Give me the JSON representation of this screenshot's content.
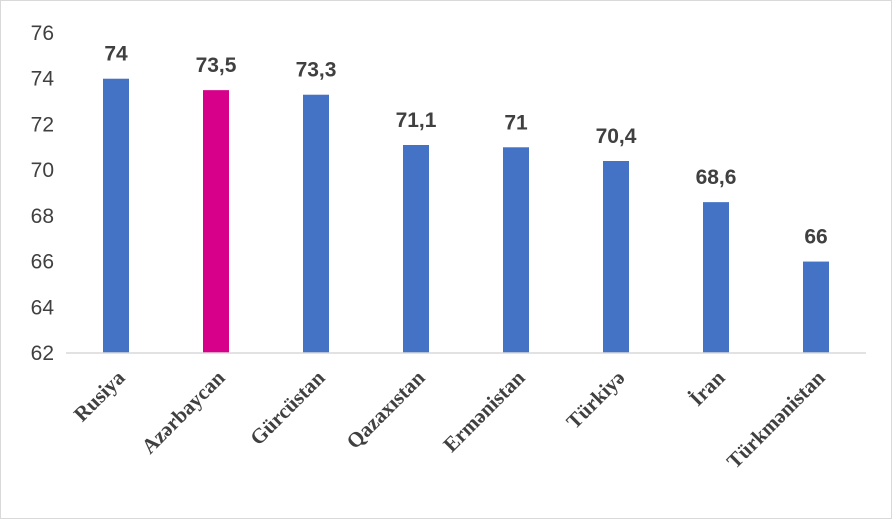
{
  "chart_data": {
    "type": "bar",
    "categories": [
      "Rusiya",
      "Azərbaycan",
      "Gürcüstan",
      "Qazaxıstan",
      "Ermənistan",
      "Türkiyə",
      "İran",
      "Türkmənistan"
    ],
    "values": [
      74,
      73.5,
      73.3,
      71.1,
      71,
      70.4,
      68.6,
      66
    ],
    "data_labels": [
      "74",
      "73,5",
      "73,3",
      "71,1",
      "71",
      "70,4",
      "68,6",
      "66"
    ],
    "yticks": [
      62,
      64,
      66,
      68,
      70,
      72,
      74,
      76
    ],
    "ylim": [
      62,
      76
    ],
    "grid": false,
    "legend": "none",
    "colors": {
      "default": "#4472c4",
      "highlight": "#d6008b",
      "highlight_category": "Azərbaycan",
      "axis": "#d9d9d9",
      "text": "#404040"
    }
  }
}
